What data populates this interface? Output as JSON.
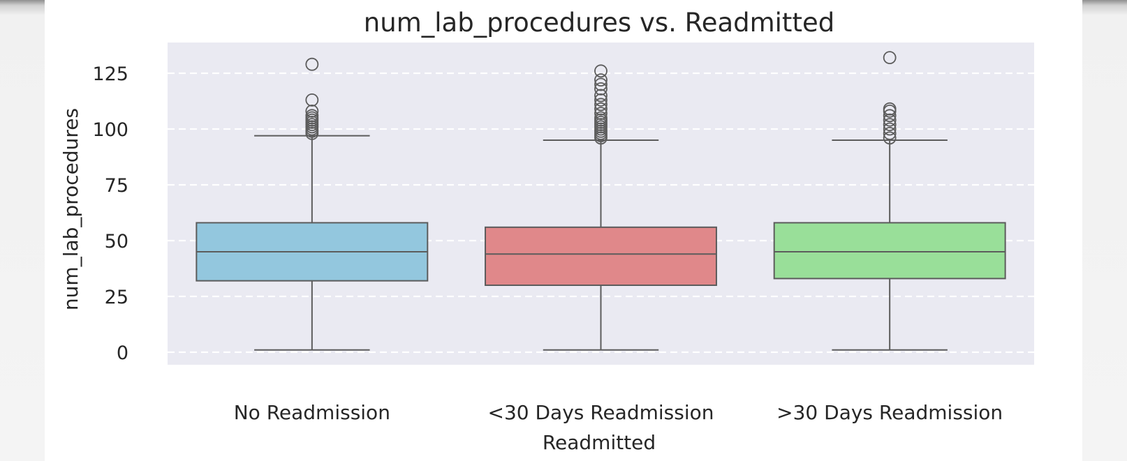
{
  "chart_data": {
    "type": "box",
    "title": "num_lab_procedures vs. Readmitted",
    "xlabel": "Readmitted",
    "ylabel": "num_lab_procedures",
    "categories": [
      "No Readmission",
      "<30 Days Readmission",
      ">30 Days Readmission"
    ],
    "yticks": [
      0,
      25,
      50,
      75,
      100,
      125
    ],
    "ylim": [
      -5,
      138
    ],
    "grid": "horizontal dashed",
    "boxes": [
      {
        "category": "No Readmission",
        "color": "#93c7de",
        "min": 1,
        "q1": 32,
        "median": 45,
        "q3": 58,
        "max": 97,
        "outliers": [
          98,
          99,
          100,
          101,
          102,
          103,
          104,
          105,
          106,
          108,
          113,
          129
        ]
      },
      {
        "category": "<30 Days Readmission",
        "color": "#e0888a",
        "min": 1,
        "q1": 30,
        "median": 44,
        "q3": 56,
        "max": 95,
        "outliers": [
          96,
          97,
          98,
          99,
          100,
          101,
          102,
          103,
          104,
          105,
          107,
          109,
          111,
          113,
          115,
          118,
          120,
          122,
          126
        ]
      },
      {
        "category": ">30 Days Readmission",
        "color": "#99df99",
        "min": 1,
        "q1": 33,
        "median": 45,
        "q3": 58,
        "max": 95,
        "outliers": [
          96,
          98,
          100,
          102,
          104,
          106,
          108,
          109,
          132
        ]
      }
    ]
  }
}
